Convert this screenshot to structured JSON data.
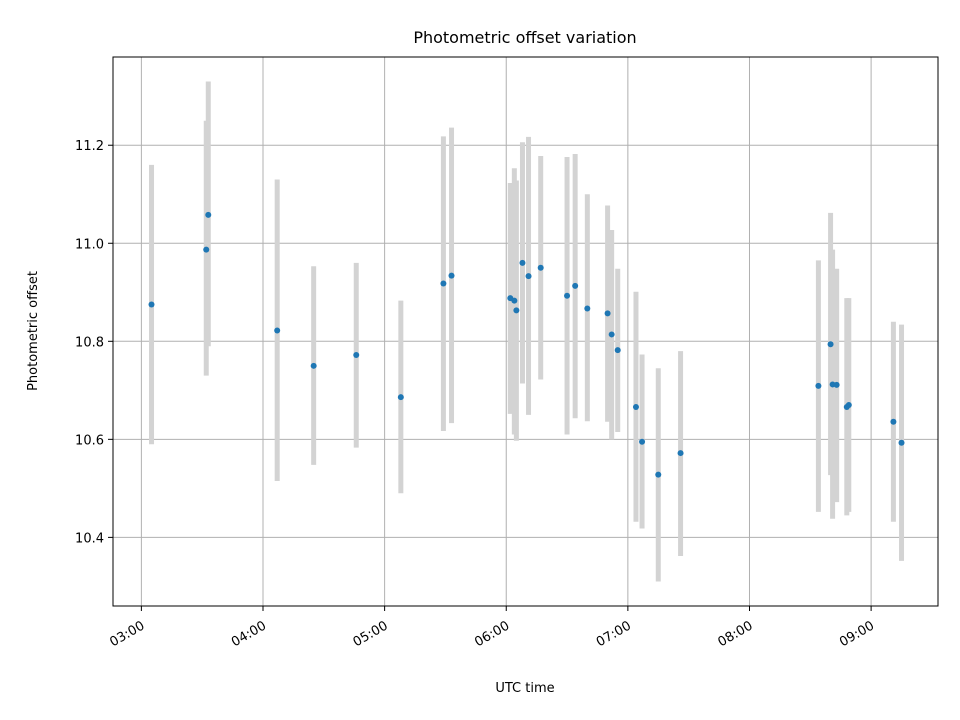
{
  "chart_data": {
    "type": "scatter",
    "title": "Photometric offset variation",
    "xlabel": "UTC time",
    "ylabel": "Photometric offset",
    "x_tick_labels": [
      "03:00",
      "04:00",
      "05:00",
      "06:00",
      "07:00",
      "08:00",
      "09:00"
    ],
    "y_tick_labels": [
      "10.4",
      "10.6",
      "10.8",
      "11.0",
      "11.2"
    ],
    "y_ticks": [
      10.4,
      10.6,
      10.8,
      11.0,
      11.2
    ],
    "xlim": [
      "02:46",
      "09:33"
    ],
    "ylim": [
      10.26,
      11.38
    ],
    "grid": true,
    "error_bar_color": "#d3d3d3",
    "point_color": "#1f77b4",
    "points": [
      {
        "x": "03:05",
        "y": 10.875,
        "lo": 10.59,
        "hi": 11.16
      },
      {
        "x": "03:32",
        "y": 10.987,
        "lo": 10.73,
        "hi": 11.25
      },
      {
        "x": "03:33",
        "y": 11.058,
        "lo": 10.79,
        "hi": 11.33
      },
      {
        "x": "04:07",
        "y": 10.822,
        "lo": 10.515,
        "hi": 11.13
      },
      {
        "x": "04:25",
        "y": 10.75,
        "lo": 10.548,
        "hi": 10.953
      },
      {
        "x": "04:46",
        "y": 10.772,
        "lo": 10.583,
        "hi": 10.96
      },
      {
        "x": "05:08",
        "y": 10.686,
        "lo": 10.49,
        "hi": 10.883
      },
      {
        "x": "05:29",
        "y": 10.918,
        "lo": 10.617,
        "hi": 11.218
      },
      {
        "x": "05:33",
        "y": 10.934,
        "lo": 10.633,
        "hi": 11.236
      },
      {
        "x": "06:02",
        "y": 10.888,
        "lo": 10.652,
        "hi": 11.123
      },
      {
        "x": "06:04",
        "y": 10.883,
        "lo": 10.61,
        "hi": 11.153
      },
      {
        "x": "06:05",
        "y": 10.863,
        "lo": 10.597,
        "hi": 11.128
      },
      {
        "x": "06:08",
        "y": 10.96,
        "lo": 10.714,
        "hi": 11.206
      },
      {
        "x": "06:11",
        "y": 10.933,
        "lo": 10.65,
        "hi": 11.217
      },
      {
        "x": "06:17",
        "y": 10.95,
        "lo": 10.722,
        "hi": 11.178
      },
      {
        "x": "06:30",
        "y": 10.893,
        "lo": 10.61,
        "hi": 11.176
      },
      {
        "x": "06:34",
        "y": 10.913,
        "lo": 10.643,
        "hi": 11.182
      },
      {
        "x": "06:40",
        "y": 10.867,
        "lo": 10.637,
        "hi": 11.1
      },
      {
        "x": "06:50",
        "y": 10.857,
        "lo": 10.636,
        "hi": 11.077
      },
      {
        "x": "06:52",
        "y": 10.814,
        "lo": 10.6,
        "hi": 11.027
      },
      {
        "x": "06:55",
        "y": 10.782,
        "lo": 10.615,
        "hi": 10.948
      },
      {
        "x": "07:04",
        "y": 10.666,
        "lo": 10.432,
        "hi": 10.901
      },
      {
        "x": "07:07",
        "y": 10.595,
        "lo": 10.418,
        "hi": 10.773
      },
      {
        "x": "07:15",
        "y": 10.528,
        "lo": 10.31,
        "hi": 10.745
      },
      {
        "x": "07:26",
        "y": 10.572,
        "lo": 10.362,
        "hi": 10.78
      },
      {
        "x": "08:34",
        "y": 10.709,
        "lo": 10.452,
        "hi": 10.965
      },
      {
        "x": "08:40",
        "y": 10.794,
        "lo": 10.527,
        "hi": 11.062
      },
      {
        "x": "08:41",
        "y": 10.712,
        "lo": 10.438,
        "hi": 10.987
      },
      {
        "x": "08:43",
        "y": 10.711,
        "lo": 10.472,
        "hi": 10.948
      },
      {
        "x": "08:48",
        "y": 10.666,
        "lo": 10.445,
        "hi": 10.888
      },
      {
        "x": "08:49",
        "y": 10.67,
        "lo": 10.452,
        "hi": 10.888
      },
      {
        "x": "09:11",
        "y": 10.636,
        "lo": 10.432,
        "hi": 10.84
      },
      {
        "x": "09:15",
        "y": 10.593,
        "lo": 10.352,
        "hi": 10.834
      }
    ]
  }
}
